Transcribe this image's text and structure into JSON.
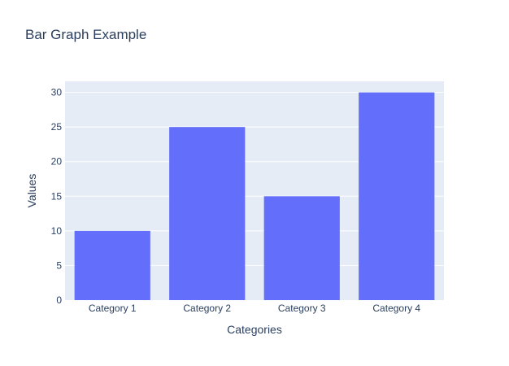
{
  "chart_data": {
    "type": "bar",
    "title": "Bar Graph Example",
    "xlabel": "Categories",
    "ylabel": "Values",
    "categories": [
      "Category 1",
      "Category 2",
      "Category 3",
      "Category 4"
    ],
    "values": [
      10,
      25,
      15,
      30
    ],
    "ylim": [
      0,
      31.6
    ],
    "yticks": [
      0,
      5,
      10,
      15,
      20,
      25,
      30
    ],
    "grid": true,
    "colors": {
      "bar": "#636efa",
      "plot_background": "#e5ecf6",
      "gridline": "#ffffff",
      "text": "#2a3f5f"
    }
  }
}
